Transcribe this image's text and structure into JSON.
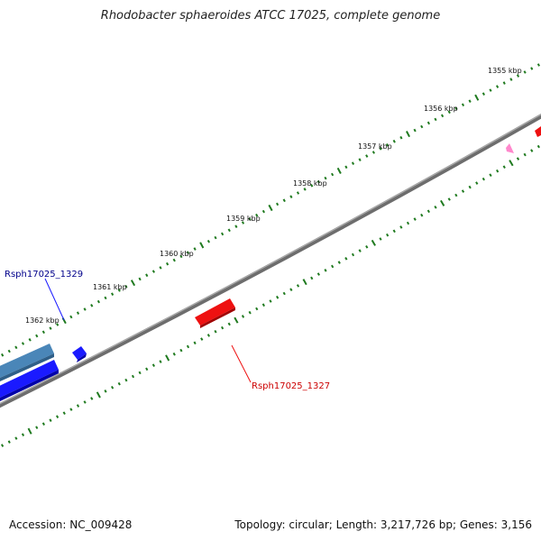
{
  "title": "Rhodobacter sphaeroides ATCC 17025, complete genome",
  "accession_label": "Accession: NC_009428",
  "summary": "Topology: circular; Length: 3,217,726 bp; Genes: 3,156",
  "colors": {
    "backbone": "#7a7a7a",
    "tick": "#1f7a1f",
    "forward_gene": "#1a1aff",
    "forward_gene_alt": "#4a86b8",
    "reverse_gene": "#ee1111",
    "reverse_gene_light": "#ff88cc",
    "label_forward": "#00008b",
    "label_reverse": "#cc0000"
  },
  "scale_labels": [
    "1355 kbp",
    "1356 kbp",
    "1357 kbp",
    "1358 kbp",
    "1359 kbp",
    "1360 kbp",
    "1361 kbp",
    "1362 kbp"
  ],
  "gene_labels": {
    "upper": "Rsph17025_1329",
    "lower": "Rsph17025_1327"
  }
}
